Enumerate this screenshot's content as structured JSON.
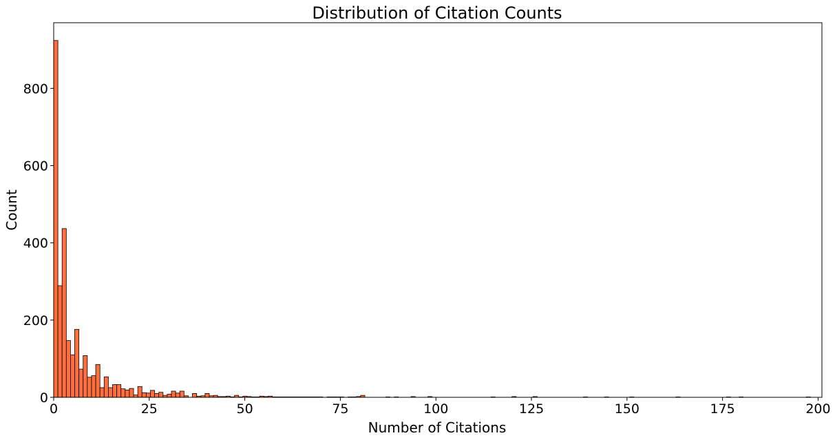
{
  "colors": {
    "bar": "#FF6E3C",
    "edge": "#000000"
  },
  "chart_data": {
    "type": "bar",
    "title": "Distribution of Citation Counts",
    "xlabel": "Number of Citations",
    "ylabel": "Count",
    "xlim": [
      0,
      201
    ],
    "ylim": [
      0,
      970
    ],
    "xticks": [
      0,
      25,
      50,
      75,
      100,
      125,
      150,
      175,
      200
    ],
    "yticks": [
      0,
      200,
      400,
      600,
      800
    ],
    "grid": false,
    "legend": "none",
    "bin_width": 1.1,
    "bin_start": 0,
    "values": [
      924,
      289,
      437,
      147,
      110,
      176,
      73,
      108,
      52,
      56,
      85,
      25,
      53,
      25,
      33,
      33,
      22,
      19,
      23,
      6,
      28,
      12,
      11,
      18,
      10,
      13,
      5,
      8,
      16,
      11,
      16,
      4,
      0,
      10,
      3,
      4,
      10,
      4,
      5,
      2,
      2,
      3,
      1,
      5,
      1,
      3,
      2,
      1,
      1,
      3,
      2,
      3,
      1,
      1,
      1,
      1,
      1,
      1,
      1,
      1,
      1,
      1,
      1,
      1,
      0,
      1,
      1,
      1,
      1,
      0,
      1,
      1,
      2,
      5,
      0,
      0,
      0,
      0,
      0,
      1,
      0,
      1,
      0,
      0,
      0,
      2,
      0,
      0,
      0,
      2,
      0,
      0,
      0,
      0,
      0,
      0,
      0,
      0,
      0,
      0,
      0,
      0,
      0,
      0,
      1,
      0,
      0,
      0,
      0,
      2,
      0,
      0,
      0,
      0,
      2,
      0,
      0,
      0,
      0,
      0,
      0,
      0,
      0,
      0,
      0,
      0,
      1,
      0,
      0,
      0,
      0,
      1,
      0,
      0,
      0,
      0,
      0,
      1,
      0,
      0,
      0,
      0,
      0,
      0,
      0,
      0,
      0,
      0,
      1,
      0,
      0,
      0,
      0,
      0,
      0,
      0,
      0,
      0,
      0,
      0,
      1,
      0,
      0,
      1,
      0,
      0,
      0,
      0,
      0,
      0,
      0,
      0,
      0,
      0,
      0,
      0,
      0,
      0,
      0,
      1
    ]
  }
}
